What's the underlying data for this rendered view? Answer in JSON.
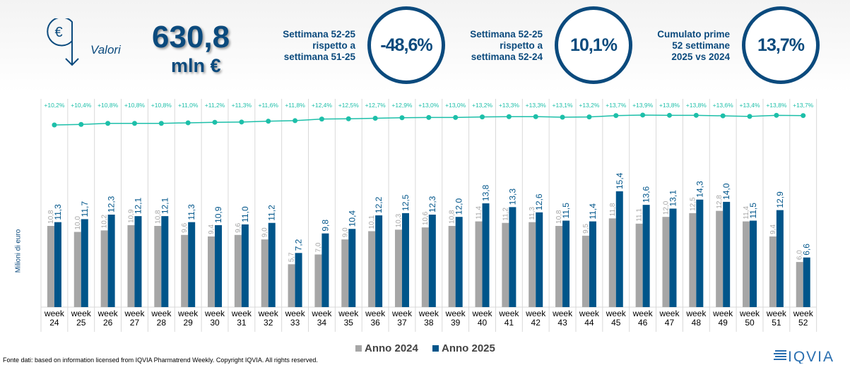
{
  "header": {
    "icon": "euro-down-arrow-icon",
    "valori_label": "Valori",
    "total_value": "630,8",
    "total_unit": "mln €",
    "kpis": [
      {
        "label_lines": [
          "Settimana 52-25",
          "rispetto a",
          "settimana 51-25"
        ],
        "value": "-48,6%"
      },
      {
        "label_lines": [
          "Settimana 52-25",
          "rispetto a",
          "settimana 52-24"
        ],
        "value": "10,1%"
      },
      {
        "label_lines": [
          "Cumulato prime",
          "52 settimane",
          "2025 vs 2024"
        ],
        "value": "13,7%"
      }
    ]
  },
  "chart_data": {
    "type": "bar",
    "ylabel": "Milioni di euro",
    "categories": [
      "week 24",
      "week 25",
      "week 26",
      "week 27",
      "week 28",
      "week 29",
      "week 30",
      "week 31",
      "week 32",
      "week 33",
      "week 34",
      "week 35",
      "week 36",
      "week 37",
      "week 38",
      "week 39",
      "week 40",
      "week 41",
      "week 42",
      "week 43",
      "week 44",
      "week 45",
      "week 46",
      "week 47",
      "week 48",
      "week 49",
      "week 50",
      "week 51",
      "week 52"
    ],
    "series": [
      {
        "name": "Anno 2024",
        "color": "#a6a6a6",
        "values": [
          10.8,
          10.0,
          10.2,
          10.9,
          10.8,
          9.6,
          9.4,
          9.6,
          9.0,
          5.7,
          7.0,
          9.0,
          10.1,
          10.3,
          10.6,
          10.8,
          11.4,
          11.2,
          11.3,
          10.8,
          9.5,
          11.8,
          11.1,
          12.0,
          12.5,
          12.8,
          11.4,
          9.4,
          6.0
        ]
      },
      {
        "name": "Anno 2025",
        "color": "#00558a",
        "values": [
          11.3,
          11.7,
          12.3,
          12.1,
          12.1,
          11.3,
          10.9,
          11.0,
          11.2,
          7.2,
          9.8,
          10.4,
          12.2,
          12.5,
          12.3,
          12.0,
          13.8,
          13.3,
          12.6,
          11.5,
          11.4,
          15.4,
          13.6,
          13.1,
          14.3,
          14.0,
          11.5,
          12.9,
          6.6
        ]
      }
    ],
    "line": {
      "type": "line",
      "color": "#1dbfa9",
      "values": [
        10.2,
        10.4,
        10.8,
        10.8,
        10.8,
        11.0,
        11.2,
        11.3,
        11.6,
        11.8,
        12.4,
        12.5,
        12.7,
        12.9,
        13.0,
        13.0,
        13.2,
        13.3,
        13.3,
        13.1,
        13.2,
        13.7,
        13.9,
        13.8,
        13.8,
        13.6,
        13.4,
        13.8,
        13.7
      ]
    },
    "ylim": [
      0,
      16
    ],
    "grid": "vertical",
    "legend": "bottom"
  },
  "legend": {
    "items": [
      "Anno 2024",
      "Anno 2025"
    ]
  },
  "footer": {
    "source": "Fonte dati: based on information licensed from IQVIA Pharmatrend Weekly. Copyright IQVIA. All rights reserved.",
    "logo": "IQVIA"
  }
}
